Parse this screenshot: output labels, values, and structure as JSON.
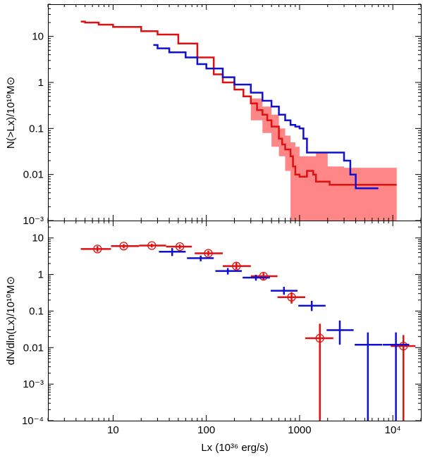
{
  "colors": {
    "red": "#e01010",
    "blue": "#1010d0",
    "band": "#ff8080"
  },
  "chart_data": [
    {
      "type": "line",
      "panel": "top",
      "title": "",
      "xlabel": "",
      "ylabel": "N(>Lx)/10¹⁰M⊙",
      "xscale": "log",
      "yscale": "log",
      "xlim": [
        2,
        20000
      ],
      "ylim": [
        0.001,
        50
      ],
      "ytick_values": [
        0.001,
        0.01,
        0.1,
        1,
        10
      ],
      "ytick_labels": [
        "10⁻³",
        "0.01",
        "0.1",
        "1",
        "10"
      ],
      "series": [
        {
          "name": "red cumulative",
          "color": "red",
          "x": [
            4.5,
            5,
            7,
            10,
            20,
            30,
            50,
            80,
            120,
            150,
            200,
            250,
            300,
            350,
            400,
            450,
            500,
            600,
            650,
            700,
            800,
            850,
            900,
            1000,
            1200,
            1400,
            1500,
            1800,
            2000,
            2100,
            3000,
            8000,
            11000
          ],
          "y": [
            21,
            20,
            18,
            16,
            13,
            11,
            7,
            3.5,
            1.5,
            1.0,
            0.7,
            0.5,
            0.35,
            0.25,
            0.2,
            0.15,
            0.11,
            0.06,
            0.045,
            0.035,
            0.025,
            0.015,
            0.01,
            0.009,
            0.012,
            0.01,
            0.007,
            0.007,
            0.007,
            0.006,
            0.006,
            0.006,
            0.006
          ]
        },
        {
          "name": "blue cumulative",
          "color": "blue",
          "x": [
            27,
            30,
            40,
            60,
            80,
            100,
            150,
            200,
            300,
            400,
            500,
            600,
            700,
            800,
            900,
            1000,
            1100,
            1200,
            1500,
            2000,
            3000,
            3500,
            4000,
            6000,
            7000
          ],
          "y": [
            6.5,
            5.5,
            4.5,
            3.5,
            2.5,
            2.0,
            1.3,
            0.9,
            0.6,
            0.4,
            0.3,
            0.2,
            0.15,
            0.12,
            0.11,
            0.1,
            0.06,
            0.03,
            0.03,
            0.03,
            0.02,
            0.01,
            0.005,
            0.005,
            0.005
          ]
        }
      ],
      "band": {
        "color": "band",
        "x": [
          300,
          400,
          500,
          600,
          700,
          800,
          900,
          1000,
          1500,
          2000,
          3000,
          5000,
          8000,
          11000
        ],
        "upper": [
          0.45,
          0.3,
          0.2,
          0.1,
          0.07,
          0.05,
          0.04,
          0.025,
          0.03,
          0.015,
          0.014,
          0.014,
          0.014,
          0.014
        ],
        "lower": [
          0.25,
          0.15,
          0.08,
          0.04,
          0.025,
          0.012,
          0.001,
          0.001,
          0.001,
          0.001,
          0.001,
          0.001,
          0.001,
          0.001
        ]
      }
    },
    {
      "type": "scatter",
      "panel": "bottom",
      "title": "",
      "xlabel": "Lx (10³⁶ erg/s)",
      "ylabel": "dN/dln(Lx)/10¹⁰M⊙",
      "xscale": "log",
      "yscale": "log",
      "xlim": [
        2,
        20000
      ],
      "ylim": [
        0.0001,
        30
      ],
      "xtick_values": [
        10,
        100,
        1000,
        10000
      ],
      "xtick_labels": [
        "10",
        "100",
        "1000",
        "10⁴"
      ],
      "ytick_values": [
        0.0001,
        0.001,
        0.01,
        0.1,
        1,
        10
      ],
      "ytick_labels": [
        "10⁻⁴",
        "10⁻³",
        "0.01",
        "0.1",
        "1",
        "10"
      ],
      "series": [
        {
          "name": "red",
          "color": "red",
          "marker": "circle-cross",
          "points": [
            {
              "x": 6.8,
              "y": 5.0,
              "xlo": 4.5,
              "xhi": 9.5,
              "ylo": 4.2,
              "yhi": 6.0
            },
            {
              "x": 13,
              "y": 6.0,
              "xlo": 9.5,
              "xhi": 19,
              "ylo": 5.2,
              "yhi": 6.8
            },
            {
              "x": 26,
              "y": 6.2,
              "xlo": 19,
              "xhi": 37,
              "ylo": 5.5,
              "yhi": 7.0
            },
            {
              "x": 52,
              "y": 5.8,
              "xlo": 37,
              "xhi": 70,
              "ylo": 5.0,
              "yhi": 6.6
            },
            {
              "x": 105,
              "y": 3.8,
              "xlo": 75,
              "xhi": 150,
              "ylo": 3.2,
              "yhi": 4.5
            },
            {
              "x": 210,
              "y": 1.7,
              "xlo": 150,
              "xhi": 300,
              "ylo": 1.4,
              "yhi": 2.1
            },
            {
              "x": 410,
              "y": 0.9,
              "xlo": 300,
              "xhi": 580,
              "ylo": 0.72,
              "yhi": 1.1
            },
            {
              "x": 820,
              "y": 0.24,
              "xlo": 580,
              "xhi": 1150,
              "ylo": 0.16,
              "yhi": 0.33
            },
            {
              "x": 1650,
              "y": 0.018,
              "xlo": 1150,
              "xhi": 2300,
              "ylo": 0.0001,
              "yhi": 0.045
            },
            {
              "x": 13000,
              "y": 0.011,
              "xlo": 9500,
              "xhi": 17500,
              "ylo": 0.0001,
              "yhi": 0.022
            }
          ]
        },
        {
          "name": "blue",
          "color": "blue",
          "marker": "cross",
          "points": [
            {
              "x": 43,
              "y": 4.2,
              "xlo": 31,
              "xhi": 60,
              "ylo": 3.2,
              "yhi": 5.3
            },
            {
              "x": 87,
              "y": 2.8,
              "xlo": 62,
              "xhi": 120,
              "ylo": 2.3,
              "yhi": 3.3
            },
            {
              "x": 170,
              "y": 1.25,
              "xlo": 125,
              "xhi": 240,
              "ylo": 1.0,
              "yhi": 1.5
            },
            {
              "x": 340,
              "y": 0.82,
              "xlo": 245,
              "xhi": 480,
              "ylo": 0.68,
              "yhi": 0.98
            },
            {
              "x": 680,
              "y": 0.36,
              "xlo": 490,
              "xhi": 950,
              "ylo": 0.28,
              "yhi": 0.46
            },
            {
              "x": 1350,
              "y": 0.14,
              "xlo": 970,
              "xhi": 1900,
              "ylo": 0.1,
              "yhi": 0.19
            },
            {
              "x": 2700,
              "y": 0.03,
              "xlo": 1950,
              "xhi": 3800,
              "ylo": 0.012,
              "yhi": 0.055
            },
            {
              "x": 5400,
              "y": 0.012,
              "xlo": 3900,
              "xhi": 7700,
              "ylo": 0.0001,
              "yhi": 0.026
            },
            {
              "x": 10800,
              "y": 0.012,
              "xlo": 7800,
              "xhi": 15000,
              "ylo": 0.0001,
              "yhi": 0.026
            }
          ]
        }
      ]
    }
  ]
}
